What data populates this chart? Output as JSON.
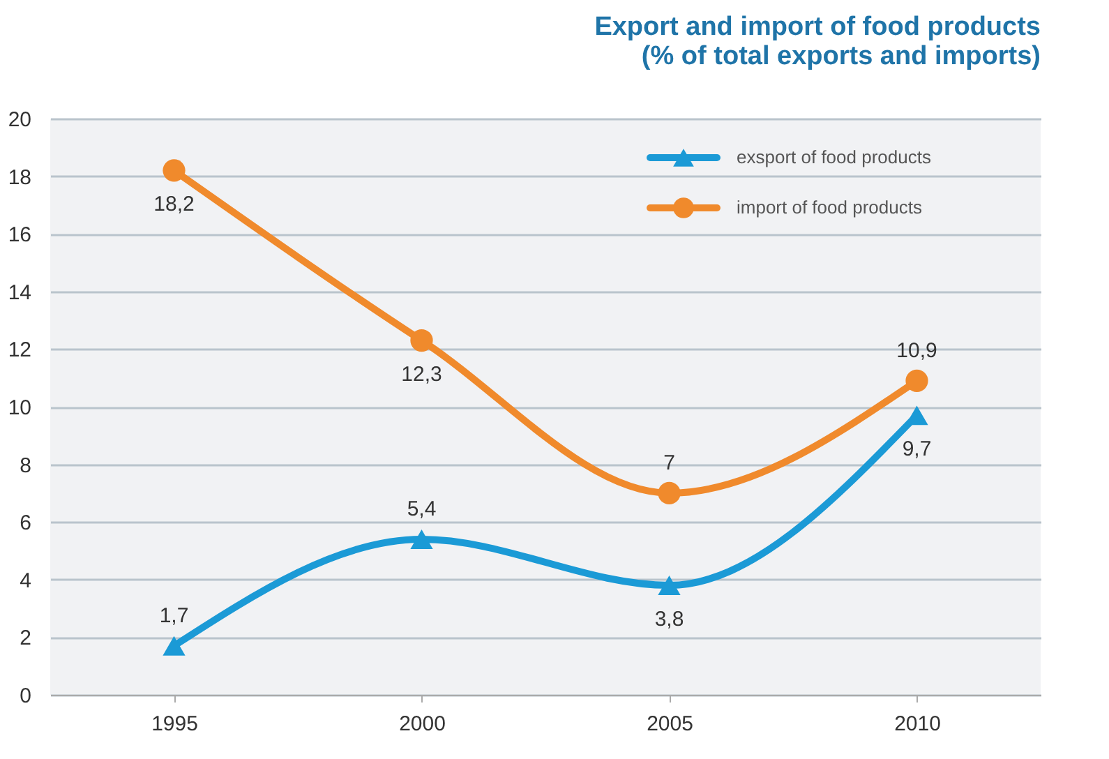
{
  "chart_data": {
    "type": "line",
    "title": [
      "Export and import of food products",
      "(% of total exports and imports)"
    ],
    "categories": [
      "1995",
      "2000",
      "2005",
      "2010"
    ],
    "series": [
      {
        "name": "exsport of food products",
        "color": "#1b9ad6",
        "marker": "triangle",
        "values": [
          1.7,
          5.4,
          3.8,
          9.7
        ],
        "value_labels": [
          "1,7",
          "5,4",
          "3,8",
          "9,7"
        ]
      },
      {
        "name": "import of food products",
        "color": "#f08a2c",
        "marker": "circle",
        "values": [
          18.2,
          12.3,
          7,
          10.9
        ],
        "value_labels": [
          "18,2",
          "12,3",
          "7",
          "10,9"
        ]
      }
    ],
    "ylim": [
      0,
      20
    ],
    "yticks": [
      0,
      2,
      4,
      6,
      8,
      10,
      12,
      14,
      16,
      18,
      20
    ],
    "grid": "y",
    "legend": "top right",
    "line_style": "solid"
  }
}
